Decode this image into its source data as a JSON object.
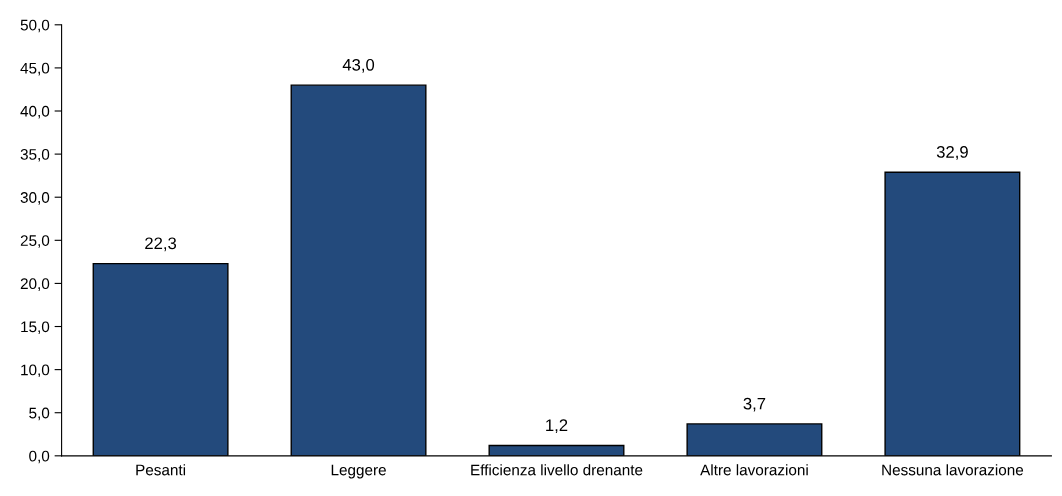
{
  "chart_data": {
    "type": "bar",
    "categories": [
      "Pesanti",
      "Leggere",
      "Efficienza livello drenante",
      "Altre lavorazioni",
      "Nessuna lavorazione"
    ],
    "values": [
      22.3,
      43.0,
      1.2,
      3.7,
      32.9
    ],
    "value_labels": [
      "22,3",
      "43,0",
      "1,2",
      "3,7",
      "32,9"
    ],
    "color": "#234a7c",
    "ylim": [
      0,
      50
    ],
    "yticks": [
      {
        "value": 0,
        "label": "0,0"
      },
      {
        "value": 5,
        "label": "5,0"
      },
      {
        "value": 10,
        "label": "10,0"
      },
      {
        "value": 15,
        "label": "15,0"
      },
      {
        "value": 20,
        "label": "20,0"
      },
      {
        "value": 25,
        "label": "25,0"
      },
      {
        "value": 30,
        "label": "30,0"
      },
      {
        "value": 35,
        "label": "35,0"
      },
      {
        "value": 40,
        "label": "40,0"
      },
      {
        "value": 45,
        "label": "45,0"
      },
      {
        "value": 50,
        "label": "50,0"
      }
    ],
    "grid": false
  }
}
